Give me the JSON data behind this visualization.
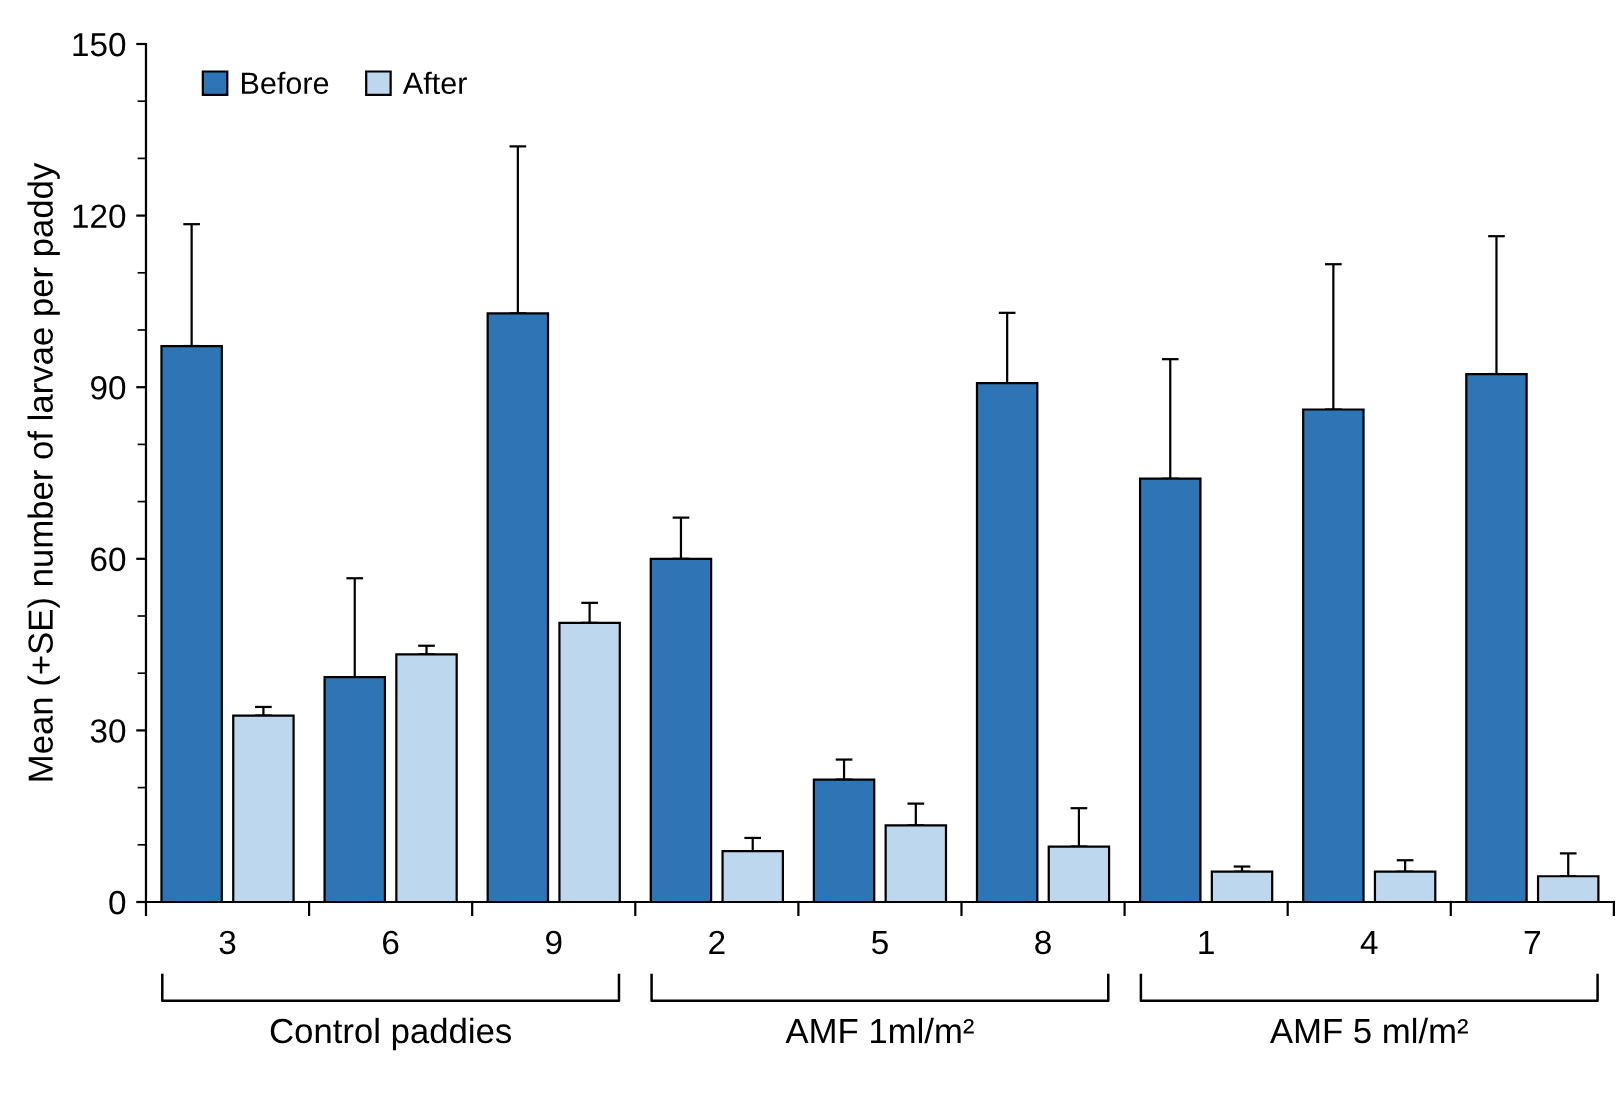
{
  "chart_data": {
    "type": "bar",
    "categories": [
      "3",
      "6",
      "9",
      "2",
      "5",
      "8",
      "1",
      "4",
      "7"
    ],
    "ylabel": "Mean (+SE) number of larvae per paddy",
    "ylim": [
      0,
      150
    ],
    "yticks": [
      0,
      30,
      60,
      90,
      120,
      150
    ],
    "grid": false,
    "legend": "top left",
    "series": [
      {
        "name": "Before",
        "color": "#2e75b6",
        "values": [
          97.2,
          39.3,
          102.9,
          60.0,
          21.4,
          90.7,
          74.0,
          86.1,
          92.3
        ],
        "errors": [
          [
            97.2,
            118.5
          ],
          [
            39.3,
            56.6
          ],
          [
            102.9,
            132.1
          ],
          [
            60.0,
            67.2
          ],
          [
            21.4,
            24.9
          ],
          [
            90.7,
            103.0
          ],
          [
            74.0,
            94.9
          ],
          [
            86.1,
            111.5
          ],
          [
            92.3,
            116.4
          ]
        ]
      },
      {
        "name": "After",
        "color": "#bdd7ee",
        "values": [
          32.6,
          43.3,
          48.8,
          8.9,
          13.4,
          9.7,
          5.3,
          5.3,
          4.5
        ],
        "errors": [
          [
            32.6,
            34.1
          ],
          [
            43.3,
            44.8
          ],
          [
            48.8,
            52.3
          ],
          [
            8.9,
            11.2
          ],
          [
            13.4,
            17.2
          ],
          [
            9.7,
            16.4
          ],
          [
            5.3,
            6.2
          ],
          [
            5.3,
            7.3
          ],
          [
            4.5,
            8.5
          ]
        ]
      }
    ],
    "annotations": [
      "Control paddies",
      "AMF 1ml/m²",
      "AMF 5 ml/m²"
    ]
  }
}
